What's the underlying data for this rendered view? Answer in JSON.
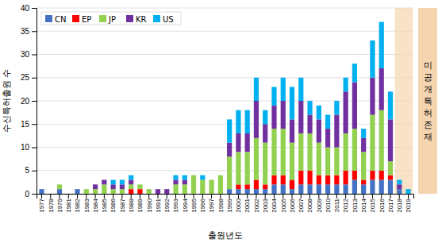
{
  "chart_data": {
    "type": "bar",
    "stacked": true,
    "xlabel": "출원년도",
    "ylabel": "수신특허출원 수",
    "categories": [
      "1977",
      "1978",
      "1979",
      "1981",
      "1982",
      "1983",
      "1984",
      "1985",
      "1986",
      "1987",
      "1988",
      "1989",
      "1990",
      "1991",
      "1992",
      "1993",
      "1994",
      "1995",
      "1996",
      "1997",
      "1998",
      "1999",
      "2000",
      "2001",
      "2002",
      "2003",
      "2004",
      "2005",
      "2006",
      "2007",
      "2008",
      "2009",
      "2010",
      "2011",
      "2012",
      "2013",
      "2014",
      "2015",
      "2016",
      "2017",
      "2018",
      "2019"
    ],
    "series": [
      {
        "name": "CN",
        "color": "#4472C4",
        "values": [
          1,
          0,
          1,
          0,
          1,
          0,
          0,
          0,
          0,
          0,
          0,
          0,
          0,
          0,
          0,
          0,
          0,
          0,
          0,
          0,
          0,
          1,
          1,
          1,
          1,
          1,
          2,
          2,
          1,
          2,
          2,
          2,
          2,
          2,
          2,
          3,
          2,
          3,
          3,
          3,
          1,
          0
        ]
      },
      {
        "name": "EP",
        "color": "#FF0000",
        "values": [
          0,
          0,
          0,
          0,
          0,
          0,
          0,
          0,
          0,
          0,
          1,
          1,
          0,
          0,
          0,
          0,
          0,
          0,
          0,
          0,
          0,
          0,
          1,
          1,
          2,
          1,
          2,
          2,
          2,
          3,
          3,
          2,
          2,
          2,
          3,
          2,
          1,
          2,
          2,
          1,
          0,
          0
        ]
      },
      {
        "name": "JP",
        "color": "#92D050",
        "values": [
          0,
          0,
          1,
          0,
          0,
          1,
          1,
          2,
          1,
          1,
          1,
          1,
          1,
          0,
          0,
          2,
          2,
          4,
          3,
          3,
          4,
          7,
          7,
          7,
          9,
          9,
          10,
          10,
          8,
          8,
          8,
          7,
          6,
          6,
          8,
          9,
          6,
          12,
          13,
          3,
          0,
          0
        ]
      },
      {
        "name": "KR",
        "color": "#7030A0",
        "values": [
          0,
          0,
          0,
          0,
          0,
          0,
          1,
          1,
          1,
          1,
          1,
          0,
          0,
          1,
          1,
          1,
          1,
          0,
          0,
          0,
          0,
          3,
          4,
          4,
          8,
          4,
          5,
          6,
          5,
          7,
          4,
          5,
          4,
          7,
          9,
          10,
          3,
          8,
          9,
          9,
          1,
          0
        ]
      },
      {
        "name": "US",
        "color": "#00B0F0",
        "values": [
          0,
          0,
          0,
          0,
          0,
          0,
          0,
          0,
          1,
          1,
          1,
          0,
          0,
          0,
          0,
          1,
          1,
          0,
          1,
          0,
          0,
          5,
          5,
          5,
          5,
          3,
          4,
          5,
          7,
          5,
          3,
          3,
          3,
          3,
          3,
          4,
          2,
          8,
          10,
          6,
          1,
          1
        ]
      }
    ],
    "ylim": [
      0,
      40
    ],
    "yticks": [
      0,
      5,
      10,
      15,
      20,
      25,
      30,
      35,
      40
    ],
    "grid": true,
    "legend": "upper left",
    "annotations": [
      {
        "text": "미\n공\n개\n특\n허\n존\n재",
        "categories": [
          "2018",
          "2019"
        ],
        "color": "#f5d5b0"
      }
    ]
  }
}
